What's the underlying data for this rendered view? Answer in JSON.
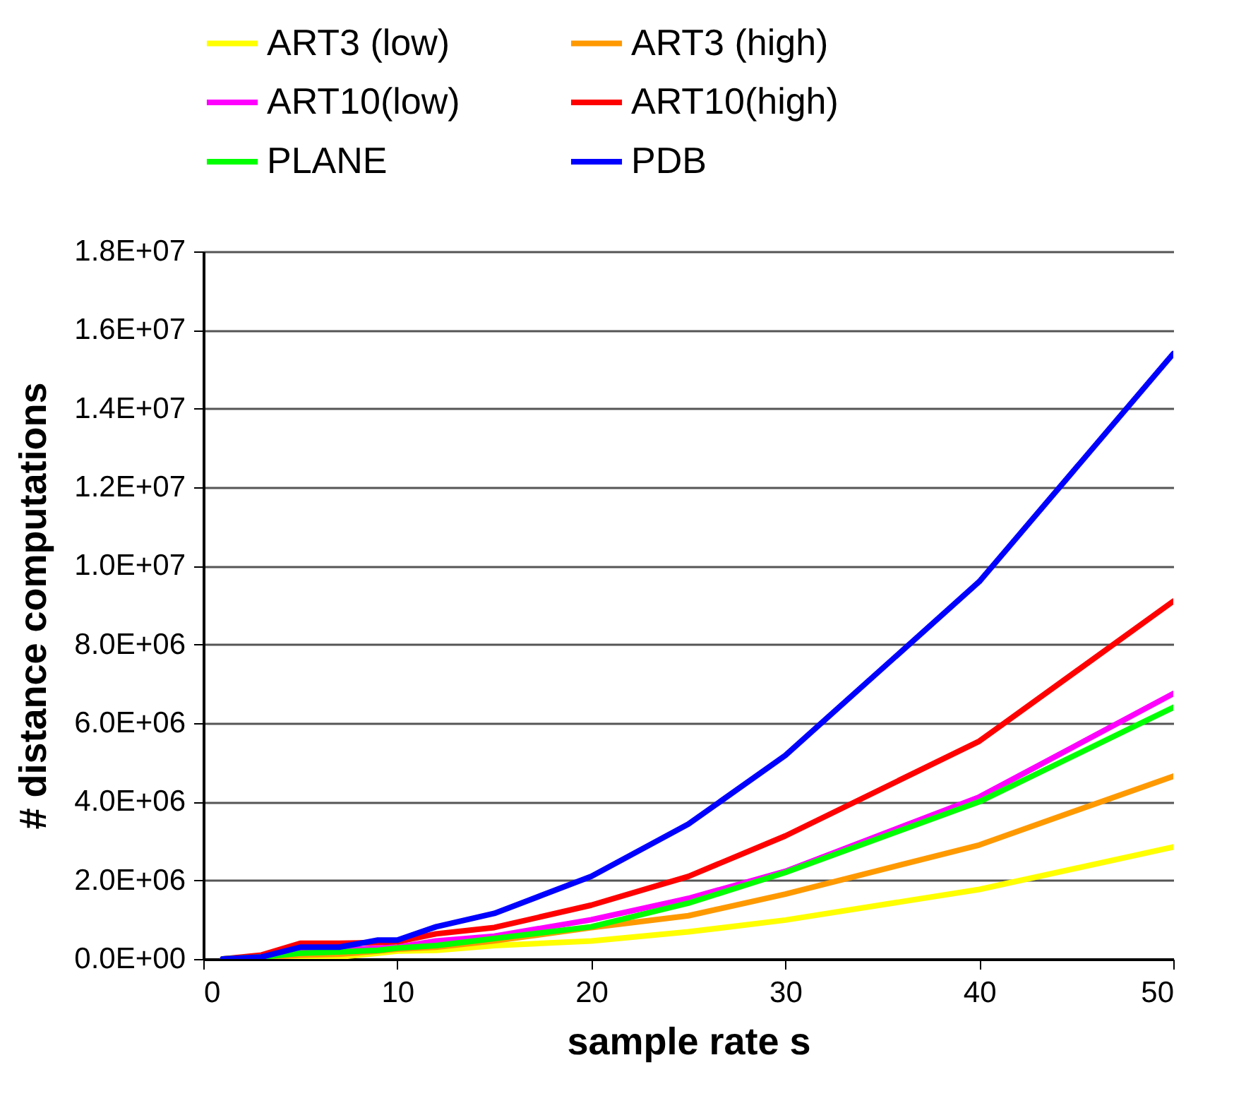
{
  "chart_data": {
    "type": "line",
    "xlabel": "sample rate s",
    "ylabel": "# distance computations",
    "x": [
      1,
      3,
      5,
      7,
      9,
      10,
      12,
      15,
      20,
      25,
      30,
      40,
      50
    ],
    "series": [
      {
        "name": "ART3 (low)",
        "color": "#ffff00",
        "values": [
          0,
          20000,
          20000,
          50000,
          150000,
          200000,
          220000,
          340000,
          460000,
          690000,
          990000,
          1770000,
          2850000
        ]
      },
      {
        "name": "ART3 (high)",
        "color": "#ff9900",
        "values": [
          0,
          30000,
          100000,
          120000,
          200000,
          250000,
          300000,
          460000,
          800000,
          1100000,
          1650000,
          2900000,
          4650000
        ]
      },
      {
        "name": "ART10(low)",
        "color": "#ff00ff",
        "values": [
          null,
          null,
          200000,
          220000,
          280000,
          300000,
          460000,
          580000,
          1000000,
          1540000,
          2230000,
          4120000,
          6750000
        ]
      },
      {
        "name": "ART10(high)",
        "color": "#ff0000",
        "values": [
          0,
          100000,
          400000,
          400000,
          420000,
          440000,
          640000,
          800000,
          1370000,
          2100000,
          3130000,
          5540000,
          9100000
        ]
      },
      {
        "name": "PLANE",
        "color": "#00ff00",
        "values": [
          0,
          50000,
          150000,
          180000,
          220000,
          280000,
          340000,
          520000,
          820000,
          1420000,
          2200000,
          4000000,
          6400000
        ]
      },
      {
        "name": "PDB",
        "color": "#0000ff",
        "values": [
          0,
          50000,
          300000,
          300000,
          480000,
          480000,
          820000,
          1160000,
          2100000,
          3430000,
          5180000,
          9600000,
          15400000
        ]
      }
    ],
    "xlim": [
      0,
      50
    ],
    "xticks": [
      0,
      10,
      20,
      30,
      40,
      50
    ],
    "ylim": [
      0,
      18000000
    ],
    "yticks": [
      {
        "value": 0,
        "label": "0.0E+00"
      },
      {
        "value": 2000000,
        "label": "2.0E+06"
      },
      {
        "value": 4000000,
        "label": "4.0E+06"
      },
      {
        "value": 6000000,
        "label": "6.0E+06"
      },
      {
        "value": 8000000,
        "label": "8.0E+06"
      },
      {
        "value": 10000000,
        "label": "1.0E+07"
      },
      {
        "value": 12000000,
        "label": "1.2E+07"
      },
      {
        "value": 14000000,
        "label": "1.4E+07"
      },
      {
        "value": 16000000,
        "label": "1.6E+07"
      },
      {
        "value": 18000000,
        "label": "1.8E+07"
      }
    ],
    "grid": "y",
    "legend": "top",
    "marker": "none",
    "line_style": "solid"
  }
}
